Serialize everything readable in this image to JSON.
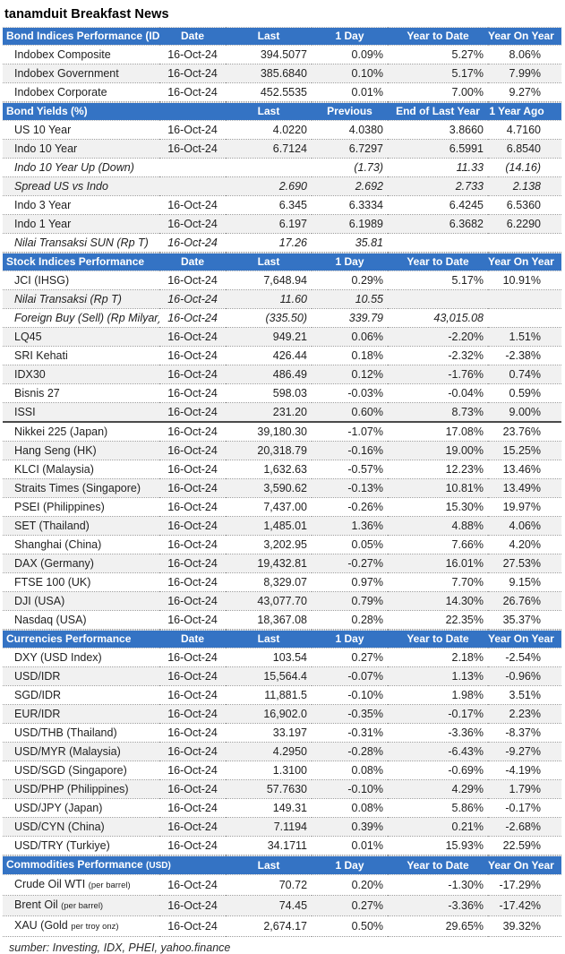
{
  "title": "tanamduit Breakfast News",
  "footer": "sumber: Investing, IDX, PHEI, yahoo.finance",
  "colors": {
    "header_bg": "#3473C4",
    "header_text": "#ffffff",
    "stripe": "#F1F1F1",
    "body_text": "#1f1f1f"
  },
  "sections": [
    {
      "id": "bond-indices",
      "header": {
        "label": "Bond Indices Performance (IDR)",
        "label_small": "",
        "columns": [
          "Date",
          "Last",
          "1 Day",
          "Year to Date",
          "Year On Year"
        ]
      },
      "rows": [
        {
          "label": "Indobex Composite",
          "cells": [
            "16-Oct-24",
            "394.5077",
            "0.09%",
            "5.27%",
            "8.06%"
          ]
        },
        {
          "label": "Indobex Government",
          "cells": [
            "16-Oct-24",
            "385.6840",
            "0.10%",
            "5.17%",
            "7.99%"
          ]
        },
        {
          "label": "Indobex Corporate",
          "cells": [
            "16-Oct-24",
            "452.5535",
            "0.01%",
            "7.00%",
            "9.27%"
          ]
        }
      ]
    },
    {
      "id": "bond-yields",
      "header": {
        "label": "Bond Yields (%)",
        "label_small": "",
        "columns": [
          "",
          "Last",
          "Previous",
          "End of Last Year",
          "1 Year Ago"
        ]
      },
      "rows": [
        {
          "label": "US 10 Year",
          "cells": [
            "16-Oct-24",
            "4.0220",
            "4.0380",
            "3.8660",
            "4.7160"
          ]
        },
        {
          "label": "Indo 10 Year",
          "cells": [
            "16-Oct-24",
            "6.7124",
            "6.7297",
            "6.5991",
            "6.8540"
          ]
        },
        {
          "label": "Indo 10 Year Up (Down)",
          "italic": true,
          "cells": [
            "",
            "",
            "(1.73)",
            "11.33",
            "(14.16)"
          ]
        },
        {
          "label": "Spread US vs Indo",
          "italic": true,
          "cells": [
            "",
            "2.690",
            "2.692",
            "2.733",
            "2.138"
          ]
        },
        {
          "label": "Indo 3 Year",
          "cells": [
            "16-Oct-24",
            "6.345",
            "6.3334",
            "6.4245",
            "6.5360"
          ]
        },
        {
          "label": "Indo 1 Year",
          "cells": [
            "16-Oct-24",
            "6.197",
            "6.1989",
            "6.3682",
            "6.2290"
          ]
        },
        {
          "label": "Nilai Transaksi SUN (Rp T)",
          "italic": true,
          "cells": [
            "16-Oct-24",
            "17.26",
            "35.81",
            "",
            ""
          ]
        }
      ]
    },
    {
      "id": "stock-indices",
      "header": {
        "label": "Stock Indices Performance",
        "label_small": "",
        "columns": [
          "Date",
          "Last",
          "1 Day",
          "Year to Date",
          "Year On Year"
        ]
      },
      "rows": [
        {
          "label": "JCI (IHSG)",
          "cells": [
            "16-Oct-24",
            "7,648.94",
            "0.29%",
            "5.17%",
            "10.91%"
          ]
        },
        {
          "label": "Nilai Transaksi (Rp T)",
          "italic": true,
          "cells": [
            "16-Oct-24",
            "11.60",
            "10.55",
            "",
            ""
          ]
        },
        {
          "label": "Foreign Buy (Sell) (Rp Milyar)",
          "italic": true,
          "cells": [
            "16-Oct-24",
            "(335.50)",
            "339.79",
            "43,015.08",
            ""
          ]
        },
        {
          "label": "LQ45",
          "cells": [
            "16-Oct-24",
            "949.21",
            "0.06%",
            "-2.20%",
            "1.51%"
          ]
        },
        {
          "label": "SRI Kehati",
          "cells": [
            "16-Oct-24",
            "426.44",
            "0.18%",
            "-2.32%",
            "-2.38%"
          ]
        },
        {
          "label": "IDX30",
          "cells": [
            "16-Oct-24",
            "486.49",
            "0.12%",
            "-1.76%",
            "0.74%"
          ]
        },
        {
          "label": "Bisnis 27",
          "cells": [
            "16-Oct-24",
            "598.03",
            "-0.03%",
            "-0.04%",
            "0.59%"
          ]
        },
        {
          "label": "ISSI",
          "divider": true,
          "cells": [
            "16-Oct-24",
            "231.20",
            "0.60%",
            "8.73%",
            "9.00%"
          ]
        },
        {
          "label": "Nikkei 225 (Japan)",
          "cells": [
            "16-Oct-24",
            "39,180.30",
            "-1.07%",
            "17.08%",
            "23.76%"
          ]
        },
        {
          "label": "Hang Seng (HK)",
          "cells": [
            "16-Oct-24",
            "20,318.79",
            "-0.16%",
            "19.00%",
            "15.25%"
          ]
        },
        {
          "label": "KLCI (Malaysia)",
          "cells": [
            "16-Oct-24",
            "1,632.63",
            "-0.57%",
            "12.23%",
            "13.46%"
          ]
        },
        {
          "label": "Straits Times (Singapore)",
          "cells": [
            "16-Oct-24",
            "3,590.62",
            "-0.13%",
            "10.81%",
            "13.49%"
          ]
        },
        {
          "label": "PSEI (Philippines)",
          "cells": [
            "16-Oct-24",
            "7,437.00",
            "-0.26%",
            "15.30%",
            "19.97%"
          ]
        },
        {
          "label": "SET (Thailand)",
          "cells": [
            "16-Oct-24",
            "1,485.01",
            "1.36%",
            "4.88%",
            "4.06%"
          ]
        },
        {
          "label": "Shanghai (China)",
          "cells": [
            "16-Oct-24",
            "3,202.95",
            "0.05%",
            "7.66%",
            "4.20%"
          ]
        },
        {
          "label": "DAX (Germany)",
          "cells": [
            "16-Oct-24",
            "19,432.81",
            "-0.27%",
            "16.01%",
            "27.53%"
          ]
        },
        {
          "label": "FTSE 100 (UK)",
          "cells": [
            "16-Oct-24",
            "8,329.07",
            "0.97%",
            "7.70%",
            "9.15%"
          ]
        },
        {
          "label": "DJI (USA)",
          "cells": [
            "16-Oct-24",
            "43,077.70",
            "0.79%",
            "14.30%",
            "26.76%"
          ]
        },
        {
          "label": "Nasdaq (USA)",
          "cells": [
            "16-Oct-24",
            "18,367.08",
            "0.28%",
            "22.35%",
            "35.37%"
          ]
        }
      ]
    },
    {
      "id": "currencies",
      "header": {
        "label": "Currencies Performance",
        "label_small": "",
        "columns": [
          "Date",
          "Last",
          "1 Day",
          "Year to Date",
          "Year On Year"
        ]
      },
      "rows": [
        {
          "label": "DXY (USD Index)",
          "cells": [
            "16-Oct-24",
            "103.54",
            "0.27%",
            "2.18%",
            "-2.54%"
          ]
        },
        {
          "label": "USD/IDR",
          "cells": [
            "16-Oct-24",
            "15,564.4",
            "-0.07%",
            "1.13%",
            "-0.96%"
          ]
        },
        {
          "label": "SGD/IDR",
          "cells": [
            "16-Oct-24",
            "11,881.5",
            "-0.10%",
            "1.98%",
            "3.51%"
          ]
        },
        {
          "label": "EUR/IDR",
          "cells": [
            "16-Oct-24",
            "16,902.0",
            "-0.35%",
            "-0.17%",
            "2.23%"
          ]
        },
        {
          "label": "USD/THB (Thailand)",
          "cells": [
            "16-Oct-24",
            "33.197",
            "-0.31%",
            "-3.36%",
            "-8.37%"
          ]
        },
        {
          "label": "USD/MYR (Malaysia)",
          "cells": [
            "16-Oct-24",
            "4.2950",
            "-0.28%",
            "-6.43%",
            "-9.27%"
          ]
        },
        {
          "label": "USD/SGD (Singapore)",
          "cells": [
            "16-Oct-24",
            "1.3100",
            "0.08%",
            "-0.69%",
            "-4.19%"
          ]
        },
        {
          "label": "USD/PHP (Philippines)",
          "cells": [
            "16-Oct-24",
            "57.7630",
            "-0.10%",
            "4.29%",
            "1.79%"
          ]
        },
        {
          "label": "USD/JPY (Japan)",
          "cells": [
            "16-Oct-24",
            "149.31",
            "0.08%",
            "5.86%",
            "-0.17%"
          ]
        },
        {
          "label": "USD/CYN (China)",
          "cells": [
            "16-Oct-24",
            "7.1194",
            "0.39%",
            "0.21%",
            "-2.68%"
          ]
        },
        {
          "label": "USD/TRY (Turkiye)",
          "cells": [
            "16-Oct-24",
            "34.1711",
            "0.01%",
            "15.93%",
            "22.59%"
          ]
        }
      ]
    },
    {
      "id": "commodities",
      "header": {
        "label": "Commodities Performance ",
        "label_small": "(USD)",
        "columns": [
          "",
          "Last",
          "1 Day",
          "Year to Date",
          "Year On Year"
        ]
      },
      "rows": [
        {
          "label": "Crude Oil WTI ",
          "label_small": "(per barrel)",
          "cells": [
            "16-Oct-24",
            "70.72",
            "0.20%",
            "-1.30%",
            "-17.29%"
          ]
        },
        {
          "label": "Brent Oil ",
          "label_small": "(per barrel)",
          "cells": [
            "16-Oct-24",
            "74.45",
            "0.27%",
            "-3.36%",
            "-17.42%"
          ]
        },
        {
          "label": "XAU (Gold ",
          "label_small": "per troy onz)",
          "cells": [
            "16-Oct-24",
            "2,674.17",
            "0.50%",
            "29.65%",
            "39.32%"
          ]
        }
      ]
    }
  ]
}
